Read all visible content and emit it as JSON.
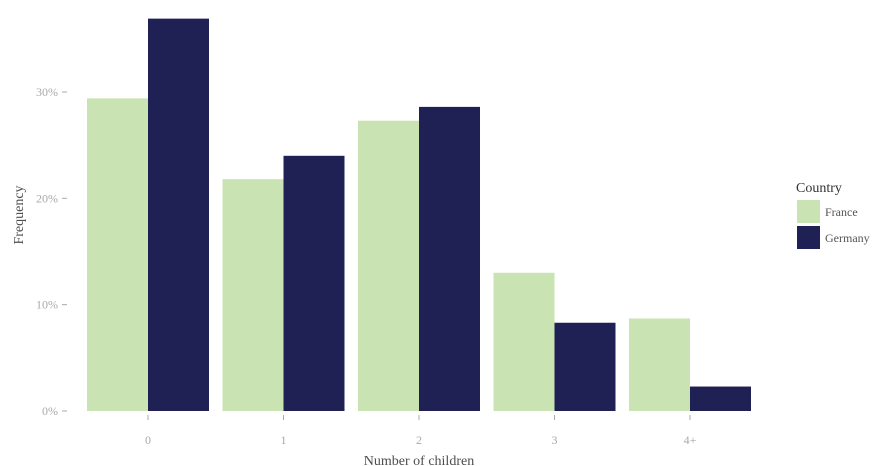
{
  "chart_data": {
    "type": "bar",
    "categories": [
      "0",
      "1",
      "2",
      "3",
      "4+"
    ],
    "series": [
      {
        "name": "France",
        "color": "#c9e3b3",
        "values": [
          29.4,
          21.8,
          27.3,
          13.0,
          8.7
        ]
      },
      {
        "name": "Germany",
        "color": "#1f2154",
        "values": [
          36.9,
          24.0,
          28.6,
          8.3,
          2.3
        ]
      }
    ],
    "xlabel": "Number of children",
    "ylabel": "Frequency",
    "ylim": [
      0,
      37
    ],
    "yticks": [
      {
        "value": 0,
        "label": "0%"
      },
      {
        "value": 10,
        "label": "10%"
      },
      {
        "value": 20,
        "label": "20%"
      },
      {
        "value": 30,
        "label": "30%"
      }
    ],
    "legend": {
      "title": "Country",
      "placement": "right"
    },
    "grid": false
  }
}
